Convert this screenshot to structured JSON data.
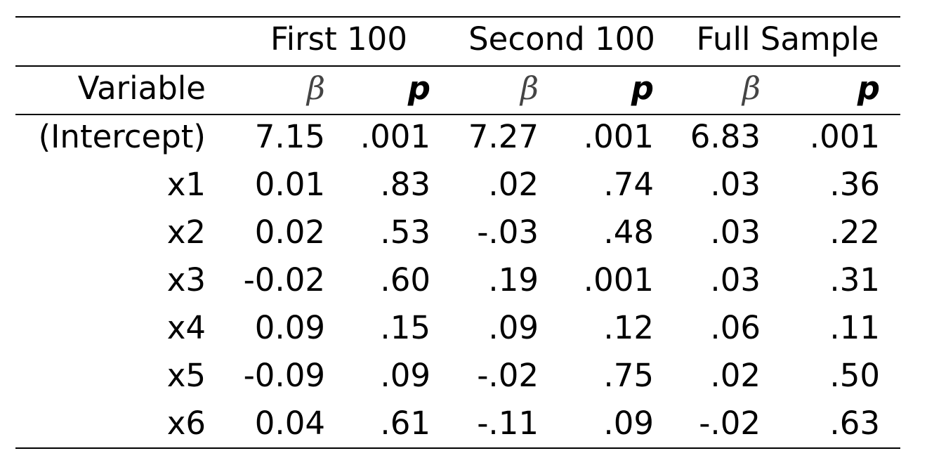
{
  "table": {
    "groups": [
      "First 100",
      "Second 100",
      "Full Sample"
    ],
    "subheader": {
      "variable": "Variable",
      "beta": "β",
      "p": "p"
    },
    "rows": [
      {
        "variable": "(Intercept)",
        "values": [
          "7.15",
          ".001",
          "7.27",
          ".001",
          "6.83",
          ".001"
        ]
      },
      {
        "variable": "x1",
        "values": [
          "0.01",
          ".83",
          ".02",
          ".74",
          ".03",
          ".36"
        ]
      },
      {
        "variable": "x2",
        "values": [
          "0.02",
          ".53",
          "-.03",
          ".48",
          ".03",
          ".22"
        ]
      },
      {
        "variable": "x3",
        "values": [
          "-0.02",
          ".60",
          ".19",
          ".001",
          ".03",
          ".31"
        ]
      },
      {
        "variable": "x4",
        "values": [
          "0.09",
          ".15",
          ".09",
          ".12",
          ".06",
          ".11"
        ]
      },
      {
        "variable": "x5",
        "values": [
          "-0.09",
          ".09",
          "-.02",
          ".75",
          ".02",
          ".50"
        ]
      },
      {
        "variable": "x6",
        "values": [
          "0.04",
          ".61",
          "-.11",
          ".09",
          "-.02",
          ".63"
        ]
      }
    ]
  }
}
